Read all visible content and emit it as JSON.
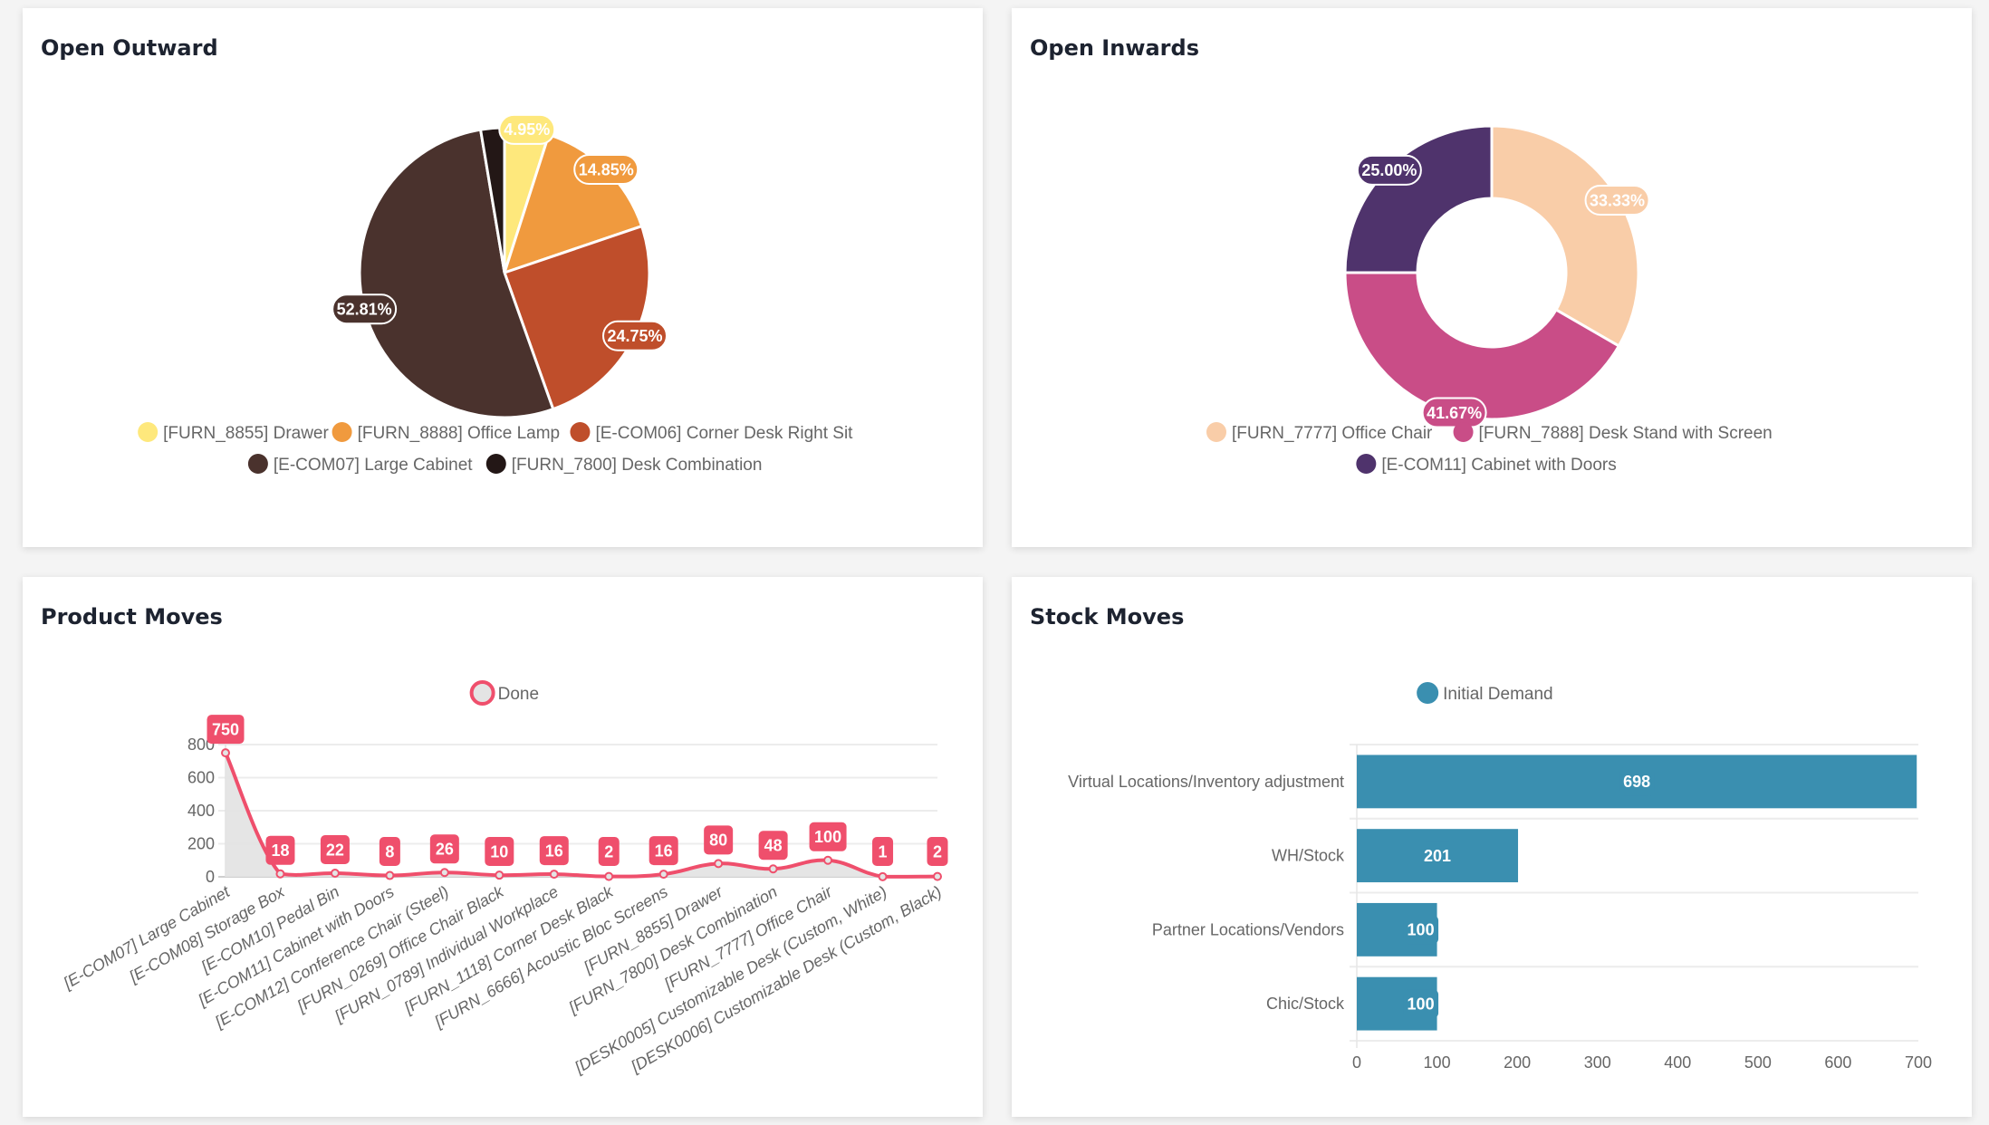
{
  "cards": {
    "open_outward": {
      "title": "Open Outward"
    },
    "open_inwards": {
      "title": "Open Inwards"
    },
    "product_moves": {
      "title": "Product Moves"
    },
    "stock_moves": {
      "title": "Stock Moves"
    }
  },
  "chart_data": [
    {
      "id": "open_outward",
      "type": "pie",
      "title": "Open Outward",
      "legend_position": "bottom",
      "labels": [
        "[FURN_8855] Drawer",
        "[FURN_8888] Office Lamp",
        "[E-COM06] Corner Desk Right Sit",
        "[E-COM07] Large Cabinet",
        "[FURN_7800] Desk Combination"
      ],
      "values": [
        4.95,
        14.85,
        24.75,
        52.81,
        2.64
      ],
      "data_labels": [
        "4.95%",
        "14.85%",
        "24.75%",
        "52.81%",
        ""
      ],
      "colors": [
        "#fee87c",
        "#f09a3e",
        "#bf4e2b",
        "#4a322d",
        "#231716"
      ]
    },
    {
      "id": "open_inwards",
      "type": "pie",
      "subtype": "doughnut",
      "title": "Open Inwards",
      "legend_position": "bottom",
      "labels": [
        "[FURN_7777] Office Chair",
        "[FURN_7888] Desk Stand with Screen",
        "[E-COM11] Cabinet with Doors"
      ],
      "values": [
        33.33,
        41.67,
        25.0
      ],
      "data_labels": [
        "33.33%",
        "41.67%",
        "25.00%"
      ],
      "colors": [
        "#f9cda8",
        "#c94d87",
        "#4f336c"
      ]
    },
    {
      "id": "product_moves",
      "type": "line",
      "title": "Product Moves",
      "legend_position": "top",
      "categories": [
        "[E-COM07] Large Cabinet",
        "[E-COM08] Storage Box",
        "[E-COM10] Pedal Bin",
        "[E-COM11] Cabinet with Doors",
        "[E-COM12] Conference Chair (Steel)",
        "[FURN_0269] Office Chair Black",
        "[FURN_0789] Individual Workplace",
        "[FURN_1118] Corner Desk Black",
        "[FURN_6666] Acoustic Bloc Screens",
        "[FURN_8855] Drawer",
        "[FURN_7800] Desk Combination",
        "[FURN_7777] Office Chair",
        "[DESK0005] Customizable Desk (Custom, White)",
        "[DESK0006] Customizable Desk (Custom, Black)"
      ],
      "series": [
        {
          "name": "Done",
          "values": [
            750,
            18,
            22,
            8,
            26,
            10,
            16,
            2,
            16,
            80,
            48,
            100,
            1,
            2
          ],
          "color": "#ef4f6c",
          "fill": "#e4e4e4"
        }
      ],
      "yticks": [
        0,
        200,
        400,
        600,
        800
      ],
      "ylim": [
        0,
        800
      ],
      "xlabel": "",
      "ylabel": "",
      "grid": true
    },
    {
      "id": "stock_moves",
      "type": "bar",
      "orientation": "horizontal",
      "title": "Stock Moves",
      "legend_position": "top",
      "categories": [
        "Virtual Locations/Inventory adjustment",
        "WH/Stock",
        "Partner Locations/Vendors",
        "Chic/Stock"
      ],
      "series": [
        {
          "name": "Initial Demand",
          "values": [
            698,
            201,
            100,
            100
          ],
          "color": "#3a8fb0"
        }
      ],
      "xticks": [
        0,
        100,
        200,
        300,
        400,
        500,
        600,
        700
      ],
      "xlim": [
        0,
        700
      ],
      "xlabel": "",
      "ylabel": "",
      "grid": true
    }
  ]
}
